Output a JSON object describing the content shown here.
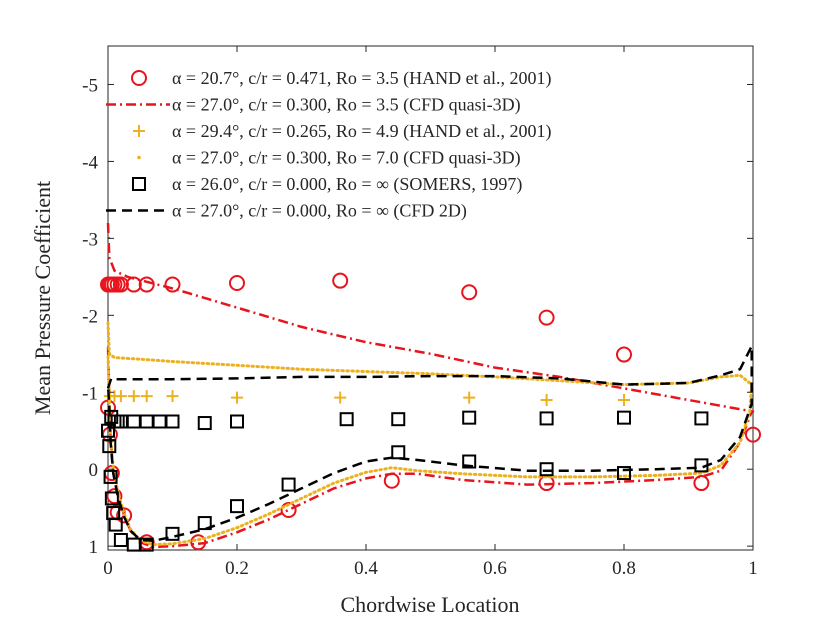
{
  "chart_data": {
    "type": "line",
    "xlabel": "Chordwise Location",
    "ylabel": "Mean Pressure Coefficient",
    "xlim": [
      0,
      1
    ],
    "ylim": [
      -5.5,
      1.05
    ],
    "y_reversed": true,
    "grid": false,
    "legend_position": "top",
    "xticks": [
      0,
      0.2,
      0.4,
      0.6,
      0.8,
      1
    ],
    "xtick_labels": [
      "0",
      "0.2",
      "0.4",
      "0.6",
      "0.8",
      "1"
    ],
    "yticks": [
      -5,
      -4,
      -3,
      -2,
      -1,
      0,
      1
    ],
    "ytick_labels": [
      "-5",
      "-4",
      "-3",
      "-2",
      "-1",
      "0",
      "1"
    ],
    "series": [
      {
        "name": "hand-alpha20.7",
        "label": "α = 20.7°, c/r = 0.471, Ro = 3.5 (HAND et al., 2001)",
        "style": "marker",
        "marker": "circle",
        "color": "#e8141c",
        "x": [
          0.0,
          0.003,
          0.006,
          0.01,
          0.015,
          0.02,
          0.04,
          0.06,
          0.1,
          0.2,
          0.36,
          0.56,
          0.68,
          0.8,
          0.0,
          0.003,
          0.006,
          0.01,
          0.015,
          0.025,
          0.06,
          0.14,
          0.28,
          0.44,
          0.68,
          0.92,
          1.0
        ],
        "y": [
          -2.4,
          -2.4,
          -2.4,
          -2.4,
          -2.4,
          -2.4,
          -2.4,
          -2.4,
          -2.4,
          -2.42,
          -2.45,
          -2.3,
          -1.97,
          -1.49,
          -0.8,
          -0.45,
          0.05,
          0.35,
          0.56,
          0.6,
          0.95,
          0.95,
          0.53,
          0.15,
          0.18,
          0.18,
          -0.45
        ]
      },
      {
        "name": "cfd-quasi3d-ro3.5",
        "label": "α = 27.0°, c/r = 0.300, Ro = 3.5 (CFD quasi-3D)",
        "style": "dashdot",
        "color": "#e8141c",
        "x": [
          0.0,
          0.002,
          0.01,
          0.03,
          0.1,
          0.2,
          0.3,
          0.4,
          0.5,
          0.6,
          0.7,
          0.8,
          0.9,
          1.0,
          0.998,
          0.98,
          0.95,
          0.92,
          0.85,
          0.75,
          0.65,
          0.55,
          0.48,
          0.44,
          0.4,
          0.35,
          0.3,
          0.25,
          0.2,
          0.15,
          0.1,
          0.07,
          0.05,
          0.035,
          0.025,
          0.015,
          0.008,
          0.004,
          0.002,
          0.0
        ],
        "y": [
          -3.2,
          -2.75,
          -2.58,
          -2.5,
          -2.35,
          -2.1,
          -1.85,
          -1.65,
          -1.5,
          -1.32,
          -1.2,
          -1.05,
          -0.9,
          -0.75,
          -0.75,
          -0.35,
          0.02,
          0.1,
          0.14,
          0.18,
          0.2,
          0.14,
          0.06,
          0.06,
          0.12,
          0.25,
          0.45,
          0.65,
          0.82,
          0.96,
          1.0,
          1.01,
          0.95,
          0.8,
          0.6,
          0.3,
          0.0,
          -0.4,
          -0.9,
          -1.6
        ]
      },
      {
        "name": "hand-alpha29.4",
        "label": "α = 29.4°, c/r = 0.265, Ro = 4.9 (HAND et al., 2001)",
        "style": "marker",
        "marker": "plus",
        "color": "#edb120",
        "x": [
          0.003,
          0.01,
          0.02,
          0.04,
          0.06,
          0.1,
          0.2,
          0.36,
          0.56,
          0.68,
          0.8
        ],
        "y": [
          -0.95,
          -0.95,
          -0.95,
          -0.95,
          -0.95,
          -0.95,
          -0.93,
          -0.93,
          -0.93,
          -0.9,
          -0.9
        ]
      },
      {
        "name": "cfd-quasi3d-ro7.0",
        "label": "α = 27.0°, c/r = 0.300, Ro = 7.0 (CFD quasi-3D)",
        "style": "dotted",
        "color": "#edb120",
        "x": [
          0.0,
          0.002,
          0.01,
          0.05,
          0.1,
          0.2,
          0.3,
          0.4,
          0.5,
          0.6,
          0.7,
          0.8,
          0.9,
          0.95,
          0.98,
          0.998,
          0.995,
          0.98,
          0.95,
          0.92,
          0.85,
          0.75,
          0.65,
          0.55,
          0.48,
          0.44,
          0.4,
          0.35,
          0.3,
          0.25,
          0.2,
          0.15,
          0.1,
          0.07,
          0.05,
          0.035,
          0.025,
          0.015,
          0.008,
          0.004,
          0.002,
          0.0
        ],
        "y": [
          -1.9,
          -1.5,
          -1.45,
          -1.43,
          -1.4,
          -1.35,
          -1.3,
          -1.27,
          -1.24,
          -1.2,
          -1.15,
          -1.1,
          -1.12,
          -1.2,
          -1.22,
          -1.1,
          -0.75,
          -0.35,
          -0.05,
          0.05,
          0.08,
          0.1,
          0.1,
          0.06,
          0.02,
          -0.02,
          0.04,
          0.18,
          0.38,
          0.58,
          0.76,
          0.9,
          0.97,
          0.98,
          0.93,
          0.78,
          0.58,
          0.28,
          -0.02,
          -0.4,
          -0.9,
          -1.5
        ]
      },
      {
        "name": "somers-alpha26.0",
        "label": "α = 26.0°, c/r = 0.000, Ro = ∞ (SOMERS, 1997)",
        "style": "marker",
        "marker": "square",
        "color": "#000000",
        "x": [
          0.005,
          0.01,
          0.015,
          0.02,
          0.04,
          0.06,
          0.08,
          0.1,
          0.15,
          0.2,
          0.37,
          0.45,
          0.56,
          0.68,
          0.8,
          0.92,
          0.0,
          0.002,
          0.004,
          0.006,
          0.008,
          0.012,
          0.02,
          0.04,
          0.06,
          0.1,
          0.15,
          0.2,
          0.28,
          0.45,
          0.56,
          0.68,
          0.8,
          0.92
        ],
        "y": [
          -0.68,
          -0.62,
          -0.62,
          -0.62,
          -0.62,
          -0.62,
          -0.62,
          -0.62,
          -0.6,
          -0.62,
          -0.65,
          -0.65,
          -0.67,
          -0.66,
          -0.67,
          -0.66,
          -0.5,
          -0.3,
          0.1,
          0.38,
          0.57,
          0.72,
          0.92,
          0.98,
          0.98,
          0.84,
          0.7,
          0.48,
          0.2,
          -0.22,
          -0.1,
          0.0,
          0.05,
          -0.05
        ]
      },
      {
        "name": "cfd-2d",
        "label": "α = 27.0°, c/r = 0.000, Ro = ∞ (CFD 2D)",
        "style": "dashed",
        "color": "#000000",
        "x": [
          0.0,
          0.005,
          0.01,
          0.05,
          0.1,
          0.2,
          0.3,
          0.4,
          0.5,
          0.6,
          0.7,
          0.8,
          0.9,
          0.95,
          0.98,
          0.998,
          0.998,
          0.98,
          0.95,
          0.92,
          0.85,
          0.75,
          0.65,
          0.55,
          0.48,
          0.44,
          0.4,
          0.35,
          0.3,
          0.25,
          0.2,
          0.15,
          0.1,
          0.07,
          0.05,
          0.035,
          0.025,
          0.015,
          0.008,
          0.004,
          0.002,
          0.0
        ],
        "y": [
          -1.05,
          -1.18,
          -1.17,
          -1.17,
          -1.17,
          -1.18,
          -1.2,
          -1.2,
          -1.21,
          -1.21,
          -1.18,
          -1.1,
          -1.12,
          -1.22,
          -1.3,
          -1.6,
          -0.85,
          -0.42,
          -0.12,
          -0.02,
          0.0,
          0.02,
          0.02,
          -0.05,
          -0.12,
          -0.15,
          -0.1,
          0.05,
          0.25,
          0.45,
          0.63,
          0.78,
          0.88,
          0.93,
          0.92,
          0.8,
          0.62,
          0.35,
          0.05,
          -0.35,
          -0.8,
          -1.1
        ]
      }
    ]
  }
}
